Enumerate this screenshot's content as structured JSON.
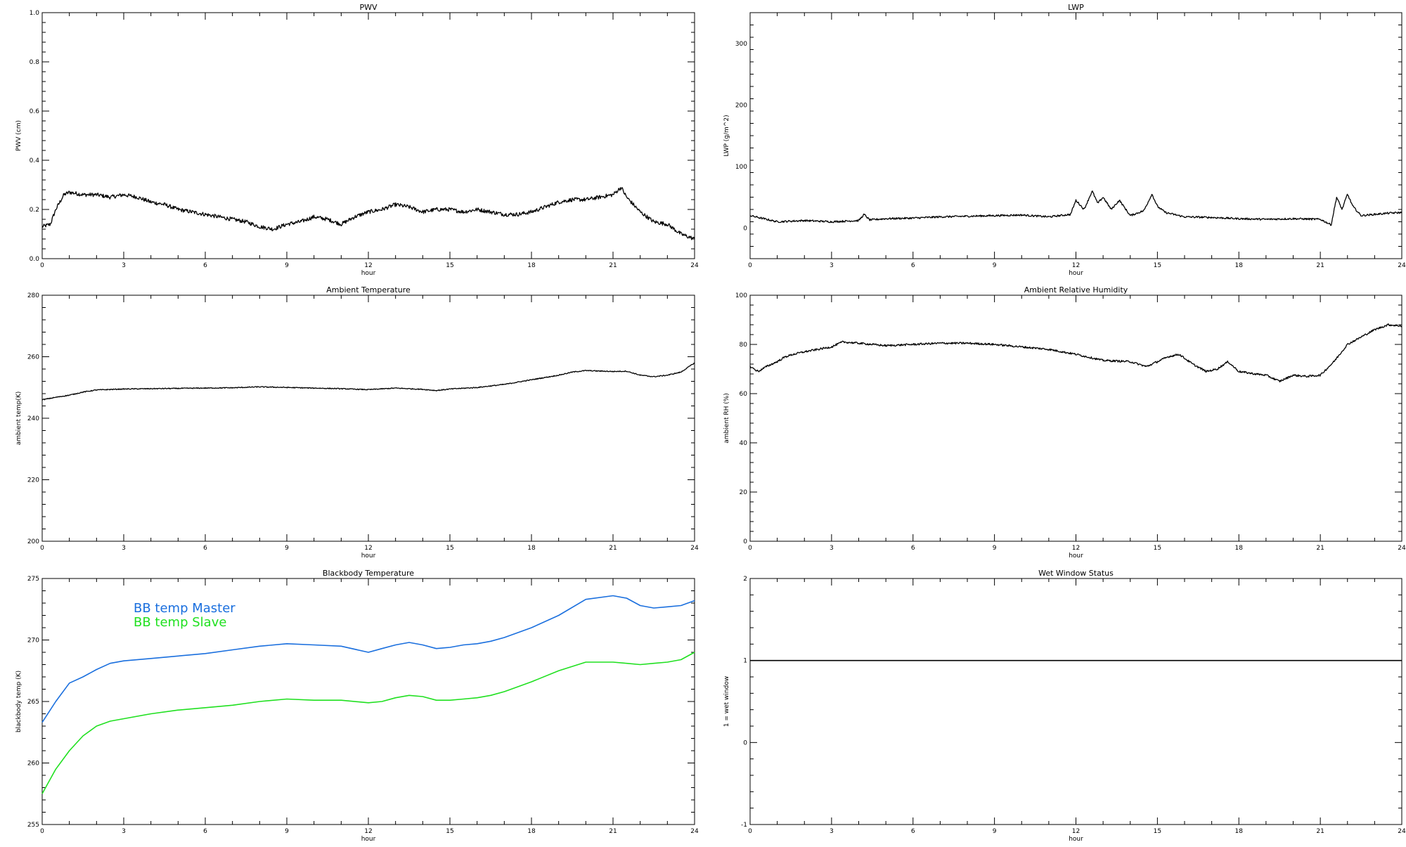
{
  "chart_data": [
    {
      "type": "line",
      "title": "PWV",
      "xlabel": "hour",
      "ylabel": "PWV (cm)",
      "xlim": [
        0,
        24
      ],
      "ylim": [
        0.0,
        1.0
      ],
      "xticks": [
        0,
        3,
        6,
        9,
        12,
        15,
        18,
        21,
        24
      ],
      "xtick_labels": [
        "0",
        "3",
        "6",
        "9",
        "12",
        "15",
        "18",
        "21",
        "24"
      ],
      "yticks": [
        0.0,
        0.2,
        0.4,
        0.6,
        0.8,
        1.0
      ],
      "ytick_labels": [
        "0.0",
        "0.2",
        "0.4",
        "0.6",
        "0.8",
        "1.0"
      ],
      "grid": false,
      "series": [
        {
          "color": "#000000",
          "noise": 0.008,
          "x": [
            0,
            0.3,
            0.5,
            0.8,
            1.0,
            1.5,
            2.0,
            2.5,
            3.0,
            3.5,
            4.0,
            4.5,
            5.0,
            5.5,
            6.0,
            6.5,
            7.0,
            7.5,
            8.0,
            8.5,
            9.0,
            9.5,
            10.0,
            10.5,
            11.0,
            11.5,
            12.0,
            12.5,
            13.0,
            13.5,
            14.0,
            14.5,
            15.0,
            15.5,
            16.0,
            16.5,
            17.0,
            17.5,
            18.0,
            18.5,
            19.0,
            19.5,
            20.0,
            20.5,
            21.0,
            21.3,
            21.5,
            22.0,
            22.5,
            23.0,
            23.5,
            24.0
          ],
          "y": [
            0.13,
            0.14,
            0.2,
            0.26,
            0.27,
            0.26,
            0.26,
            0.25,
            0.26,
            0.25,
            0.23,
            0.22,
            0.2,
            0.19,
            0.18,
            0.17,
            0.16,
            0.15,
            0.13,
            0.12,
            0.14,
            0.15,
            0.17,
            0.16,
            0.14,
            0.17,
            0.19,
            0.2,
            0.22,
            0.21,
            0.19,
            0.2,
            0.2,
            0.19,
            0.2,
            0.19,
            0.18,
            0.18,
            0.19,
            0.21,
            0.23,
            0.24,
            0.24,
            0.25,
            0.26,
            0.29,
            0.25,
            0.19,
            0.15,
            0.14,
            0.1,
            0.08
          ]
        }
      ]
    },
    {
      "type": "line",
      "title": "LWP",
      "xlabel": "hour",
      "ylabel": "LWP (g/m^2)",
      "xlim": [
        0,
        24
      ],
      "ylim": [
        -50,
        350
      ],
      "xticks": [
        0,
        3,
        6,
        9,
        12,
        15,
        18,
        21,
        24
      ],
      "xtick_labels": [
        "0",
        "3",
        "6",
        "9",
        "12",
        "15",
        "18",
        "21",
        "24"
      ],
      "yticks": [
        0,
        100,
        200,
        300
      ],
      "ytick_labels": [
        "0",
        "100",
        "200",
        "300"
      ],
      "grid": false,
      "series": [
        {
          "color": "#000000",
          "noise": 1.5,
          "x": [
            0,
            0.5,
            1.0,
            2.0,
            3.0,
            4.0,
            4.2,
            4.4,
            5.0,
            6.0,
            7.0,
            8.0,
            9.0,
            10.0,
            11.0,
            11.8,
            12.0,
            12.3,
            12.6,
            12.8,
            13.0,
            13.3,
            13.6,
            14.0,
            14.5,
            14.8,
            15.0,
            15.3,
            16.0,
            17.0,
            18.0,
            19.0,
            20.0,
            21.0,
            21.4,
            21.6,
            21.8,
            22.0,
            22.2,
            22.5,
            23.0,
            23.5,
            24.0
          ],
          "y": [
            20,
            15,
            10,
            12,
            10,
            12,
            22,
            13,
            15,
            16,
            18,
            19,
            20,
            21,
            18,
            22,
            45,
            30,
            60,
            40,
            50,
            30,
            45,
            20,
            28,
            55,
            35,
            25,
            18,
            17,
            15,
            14,
            15,
            14,
            5,
            50,
            30,
            55,
            35,
            20,
            22,
            24,
            25
          ]
        }
      ]
    },
    {
      "type": "line",
      "title": "Ambient Temperature",
      "xlabel": "hour",
      "ylabel": "ambient temp(K)",
      "xlim": [
        0,
        24
      ],
      "ylim": [
        200,
        280
      ],
      "xticks": [
        0,
        3,
        6,
        9,
        12,
        15,
        18,
        21,
        24
      ],
      "xtick_labels": [
        "0",
        "3",
        "6",
        "9",
        "12",
        "15",
        "18",
        "21",
        "24"
      ],
      "yticks": [
        200,
        220,
        240,
        260,
        280
      ],
      "ytick_labels": [
        "200",
        "220",
        "240",
        "260",
        "280"
      ],
      "grid": false,
      "series": [
        {
          "color": "#000000",
          "noise": 0.15,
          "x": [
            0,
            0.5,
            1.0,
            1.5,
            2.0,
            3.0,
            4.0,
            5.0,
            6.0,
            7.0,
            8.0,
            9.0,
            10.0,
            11.0,
            12.0,
            13.0,
            14.0,
            14.5,
            15.0,
            16.0,
            17.0,
            18.0,
            19.0,
            19.5,
            20.0,
            21.0,
            21.5,
            22.0,
            22.5,
            23.0,
            23.5,
            24.0
          ],
          "y": [
            246,
            246.8,
            247.5,
            248.5,
            249.2,
            249.5,
            249.6,
            249.7,
            249.8,
            249.9,
            250.2,
            250,
            249.8,
            249.6,
            249.3,
            249.8,
            249.4,
            249,
            249.5,
            250,
            251,
            252.5,
            254,
            255,
            255.5,
            255.2,
            255.3,
            254,
            253.5,
            254,
            255,
            258
          ]
        }
      ]
    },
    {
      "type": "line",
      "title": "Ambient Relative Humidity",
      "xlabel": "hour",
      "ylabel": "ambient RH (%)",
      "xlim": [
        0,
        24
      ],
      "ylim": [
        0,
        100
      ],
      "xticks": [
        0,
        3,
        6,
        9,
        12,
        15,
        18,
        21,
        24
      ],
      "xtick_labels": [
        "0",
        "3",
        "6",
        "9",
        "12",
        "15",
        "18",
        "21",
        "24"
      ],
      "yticks": [
        0,
        20,
        40,
        60,
        80,
        100
      ],
      "ytick_labels": [
        "0",
        "20",
        "40",
        "60",
        "80",
        "100"
      ],
      "grid": false,
      "series": [
        {
          "color": "#000000",
          "noise": 0.4,
          "x": [
            0,
            0.3,
            0.6,
            1.0,
            1.3,
            1.6,
            2.0,
            2.5,
            3.0,
            3.4,
            4.0,
            5.0,
            6.0,
            7.0,
            8.0,
            9.0,
            10.0,
            11.0,
            12.0,
            13.0,
            14.0,
            14.6,
            15.0,
            15.4,
            15.8,
            16.3,
            16.8,
            17.2,
            17.6,
            18.0,
            18.6,
            19.0,
            19.5,
            20.0,
            20.5,
            21.0,
            21.5,
            22.0,
            22.5,
            23.0,
            23.5,
            24.0
          ],
          "y": [
            71,
            69,
            71,
            73,
            75,
            76,
            77,
            78,
            79,
            81,
            80.5,
            79.5,
            80,
            80.5,
            80.5,
            80,
            79,
            78,
            76,
            73.5,
            73,
            71,
            73,
            75,
            76,
            72,
            69,
            70,
            73,
            69,
            68,
            67.5,
            65,
            67.5,
            67,
            67.5,
            73,
            80,
            83,
            86,
            88,
            87.5
          ]
        }
      ]
    },
    {
      "type": "line",
      "title": "Blackbody Temperature",
      "xlabel": "hour",
      "ylabel": "blackbody temp (K)",
      "xlim": [
        0,
        24
      ],
      "ylim": [
        255,
        275
      ],
      "xticks": [
        0,
        3,
        6,
        9,
        12,
        15,
        18,
        21,
        24
      ],
      "xtick_labels": [
        "0",
        "3",
        "6",
        "9",
        "12",
        "15",
        "18",
        "21",
        "24"
      ],
      "yticks": [
        255,
        260,
        265,
        270,
        275
      ],
      "ytick_labels": [
        "255",
        "260",
        "265",
        "270",
        "275"
      ],
      "grid": false,
      "legend_placement": "top-left",
      "series": [
        {
          "name": "BB temp Master",
          "color": "#1a6fde",
          "noise": 0,
          "x": [
            0,
            0.5,
            1.0,
            1.5,
            2.0,
            2.5,
            3.0,
            4.0,
            5.0,
            6.0,
            7.0,
            8.0,
            9.0,
            10.0,
            11.0,
            12.0,
            12.5,
            13.0,
            13.5,
            14.0,
            14.5,
            15.0,
            15.5,
            16.0,
            16.5,
            17.0,
            17.5,
            18.0,
            19.0,
            20.0,
            21.0,
            21.5,
            22.0,
            22.5,
            23.0,
            23.5,
            24.0
          ],
          "y": [
            263.3,
            265,
            266.5,
            267,
            267.6,
            268.1,
            268.3,
            268.5,
            268.7,
            268.9,
            269.2,
            269.5,
            269.7,
            269.6,
            269.5,
            269,
            269.3,
            269.6,
            269.8,
            269.6,
            269.3,
            269.4,
            269.6,
            269.7,
            269.9,
            270.2,
            270.6,
            271,
            272,
            273.3,
            273.6,
            273.4,
            272.8,
            272.6,
            272.7,
            272.8,
            273.2
          ]
        },
        {
          "name": "BB temp Slave",
          "color": "#20e020",
          "noise": 0,
          "x": [
            0,
            0.5,
            1.0,
            1.5,
            2.0,
            2.5,
            3.0,
            4.0,
            5.0,
            6.0,
            7.0,
            8.0,
            9.0,
            10.0,
            11.0,
            12.0,
            12.5,
            13.0,
            13.5,
            14.0,
            14.5,
            15.0,
            15.5,
            16.0,
            16.5,
            17.0,
            17.5,
            18.0,
            19.0,
            20.0,
            21.0,
            21.5,
            22.0,
            22.5,
            23.0,
            23.5,
            24.0
          ],
          "y": [
            257.5,
            259.5,
            261,
            262.2,
            263,
            263.4,
            263.6,
            264,
            264.3,
            264.5,
            264.7,
            265,
            265.2,
            265.1,
            265.1,
            264.9,
            265,
            265.3,
            265.5,
            265.4,
            265.1,
            265.1,
            265.2,
            265.3,
            265.5,
            265.8,
            266.2,
            266.6,
            267.5,
            268.2,
            268.2,
            268.1,
            268,
            268.1,
            268.2,
            268.4,
            269
          ]
        }
      ]
    },
    {
      "type": "line",
      "title": "Wet Window Status",
      "xlabel": "hour",
      "ylabel": "1 = wet window",
      "xlim": [
        0,
        24
      ],
      "ylim": [
        -1,
        2
      ],
      "xticks": [
        0,
        3,
        6,
        9,
        12,
        15,
        18,
        21,
        24
      ],
      "xtick_labels": [
        "0",
        "3",
        "6",
        "9",
        "12",
        "15",
        "18",
        "21",
        "24"
      ],
      "yticks": [
        -1,
        0,
        1,
        2
      ],
      "ytick_labels": [
        "-1",
        "0",
        "1",
        "2"
      ],
      "grid": false,
      "series": [
        {
          "color": "#000000",
          "noise": 0,
          "x": [
            0,
            24
          ],
          "y": [
            1,
            1
          ]
        }
      ]
    }
  ]
}
